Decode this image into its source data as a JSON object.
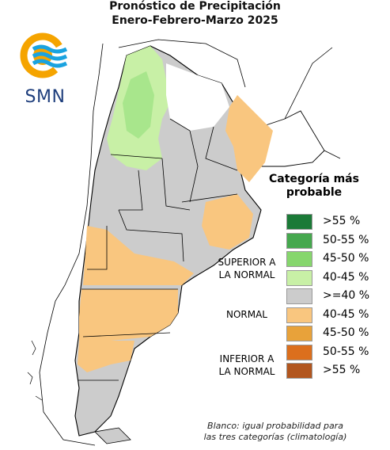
{
  "title": {
    "line1": "Pronóstico de Precipitación",
    "line2": "Enero-Febrero-Marzo 2025"
  },
  "logo": {
    "text": "SMN",
    "colors": {
      "sun": "#f5a400",
      "waves": "#1aa3e0",
      "text": "#1f3f7d"
    }
  },
  "legend": {
    "title_line1": "Categoría más",
    "title_line2": "probable",
    "groups": {
      "superior_line1": "SUPERIOR A",
      "superior_line2": "LA NORMAL",
      "normal": "NORMAL",
      "inferior_line1": "INFERIOR A",
      "inferior_line2": "LA NORMAL"
    },
    "items": [
      {
        "label": ">55 %",
        "color": "#1b7a37"
      },
      {
        "label": "50-55 %",
        "color": "#45a84e"
      },
      {
        "label": "45-50 %",
        "color": "#86d66d"
      },
      {
        "label": "40-45 %",
        "color": "#c8f0a6"
      },
      {
        "label": ">=40 %",
        "color": "#cccccc"
      },
      {
        "label": "40-45 %",
        "color": "#f9c67f"
      },
      {
        "label": "45-50 %",
        "color": "#e8a23a"
      },
      {
        "label": "50-55 %",
        "color": "#dc6f1d"
      },
      {
        "label": ">55 %",
        "color": "#b2561e"
      }
    ],
    "note_line1": "Blanco: igual probabilidad para",
    "note_line2": "las tres categorías (climatología)"
  },
  "map_colors": {
    "white": "#ffffff",
    "outline": "#000000",
    "grey": "#cccccc",
    "green": "#c8f0a6",
    "green_mid": "#a8e68c",
    "orange": "#f9c67f"
  }
}
